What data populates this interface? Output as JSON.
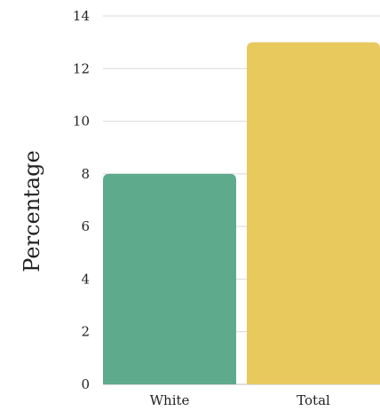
{
  "chart_data": {
    "type": "bar",
    "title": "",
    "xlabel": "",
    "ylabel": "Percentage",
    "ylim": [
      0,
      14
    ],
    "yticks": [
      0,
      2,
      4,
      6,
      8,
      10,
      12,
      14
    ],
    "grid": true,
    "categories": [
      "White",
      "Total"
    ],
    "values": [
      8,
      13
    ],
    "colors": [
      "#5eaa8c",
      "#e8c95e"
    ]
  }
}
